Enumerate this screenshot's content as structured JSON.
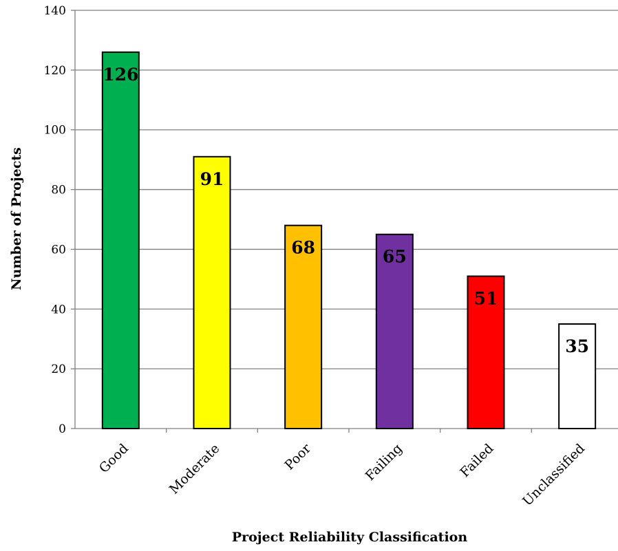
{
  "chart_data": {
    "type": "bar",
    "categories": [
      "Good",
      "Moderate",
      "Poor",
      "Failing",
      "Failed",
      "Unclassified"
    ],
    "values": [
      126,
      91,
      68,
      65,
      51,
      35
    ],
    "colors": [
      "#00b050",
      "#ffff00",
      "#ffc000",
      "#7030a0",
      "#ff0000",
      "#ffffff"
    ],
    "data_labels": [
      "126",
      "91",
      "68",
      "65",
      "51",
      "35"
    ],
    "xlabel": "Project Reliability Classification",
    "ylabel": "Number of Projects",
    "ylim": [
      0,
      140
    ],
    "yticks": [
      0,
      20,
      40,
      60,
      80,
      100,
      120,
      140
    ],
    "ytick_labels": [
      "0",
      "20",
      "40",
      "60",
      "80",
      "100",
      "120",
      "140"
    ],
    "grid": true,
    "legend": "none",
    "bar_stroke_color": "#000000",
    "grid_color": "#808080"
  }
}
